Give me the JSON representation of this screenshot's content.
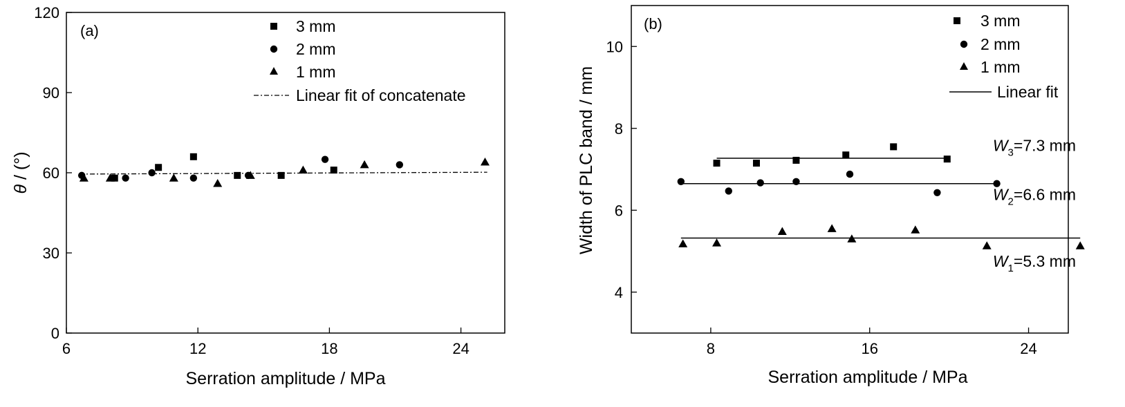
{
  "chart_data": [
    {
      "type": "scatter",
      "panel_label": "(a)",
      "xlabel": "Serration amplitude / MPa",
      "ylabel_prefix": "θ",
      "ylabel_suffix": " / (°)",
      "xlim": [
        6,
        26
      ],
      "ylim": [
        0,
        120
      ],
      "xticks": [
        6,
        12,
        18,
        24
      ],
      "yticks": [
        0,
        30,
        60,
        90,
        120
      ],
      "legend_position": "top-right",
      "series": [
        {
          "name": "3 mm",
          "marker": "square",
          "x": [
            8.2,
            10.2,
            11.8,
            13.8,
            15.8,
            18.2
          ],
          "y": [
            58,
            62,
            66,
            59,
            59,
            61
          ]
        },
        {
          "name": "2 mm",
          "marker": "circle",
          "x": [
            6.7,
            8.7,
            9.9,
            11.8,
            14.3,
            17.8,
            21.2
          ],
          "y": [
            59,
            58,
            60,
            58,
            59,
            65,
            63
          ]
        },
        {
          "name": "1 mm",
          "marker": "triangle",
          "x": [
            6.8,
            8.0,
            10.9,
            12.9,
            14.4,
            16.8,
            19.6,
            25.1
          ],
          "y": [
            58,
            58,
            58,
            56,
            59,
            61,
            63,
            64
          ]
        }
      ],
      "fit": {
        "name": "Linear fit of concatenate",
        "style": "dash-dot",
        "x": [
          6.6,
          25.2
        ],
        "y": [
          59.5,
          60.2
        ]
      }
    },
    {
      "type": "scatter",
      "panel_label": "(b)",
      "xlabel": "Serration amplitude / MPa",
      "ylabel": "Width of PLC band / mm",
      "xlim": [
        4,
        26
      ],
      "ylim": [
        3,
        11
      ],
      "xticks": [
        8,
        16,
        24
      ],
      "yticks": [
        4,
        6,
        8,
        10
      ],
      "legend_position": "top-right",
      "series": [
        {
          "name": "3 mm",
          "marker": "square",
          "x": [
            8.3,
            10.3,
            12.3,
            14.8,
            17.2,
            19.9
          ],
          "y": [
            7.15,
            7.15,
            7.22,
            7.35,
            7.55,
            7.25
          ],
          "fit_x": [
            8.3,
            19.9
          ],
          "fit_y": [
            7.27,
            7.27
          ]
        },
        {
          "name": "2 mm",
          "marker": "circle",
          "x": [
            6.5,
            8.9,
            10.5,
            12.3,
            15.0,
            19.4,
            22.4
          ],
          "y": [
            6.7,
            6.47,
            6.67,
            6.7,
            6.88,
            6.43,
            6.65
          ],
          "fit_x": [
            6.5,
            22.4
          ],
          "fit_y": [
            6.65,
            6.65
          ]
        },
        {
          "name": "1 mm",
          "marker": "triangle",
          "x": [
            6.6,
            8.3,
            11.6,
            14.1,
            15.1,
            18.3,
            21.9,
            26.6
          ],
          "y": [
            5.18,
            5.2,
            5.48,
            5.55,
            5.3,
            5.52,
            5.13,
            5.13
          ],
          "fit_x": [
            6.5,
            26.6
          ],
          "fit_y": [
            5.32,
            5.32
          ]
        }
      ],
      "fit_legend": "Linear fit",
      "annotations": [
        {
          "italic": "W",
          "sub": "3",
          "rest": "=7.3 mm",
          "x": 22.2,
          "y": 7.45
        },
        {
          "italic": "W",
          "sub": "2",
          "rest": "=6.6 mm",
          "x": 22.2,
          "y": 6.25
        },
        {
          "italic": "W",
          "sub": "1",
          "rest": "=5.3 mm",
          "x": 22.2,
          "y": 4.62
        }
      ]
    }
  ]
}
